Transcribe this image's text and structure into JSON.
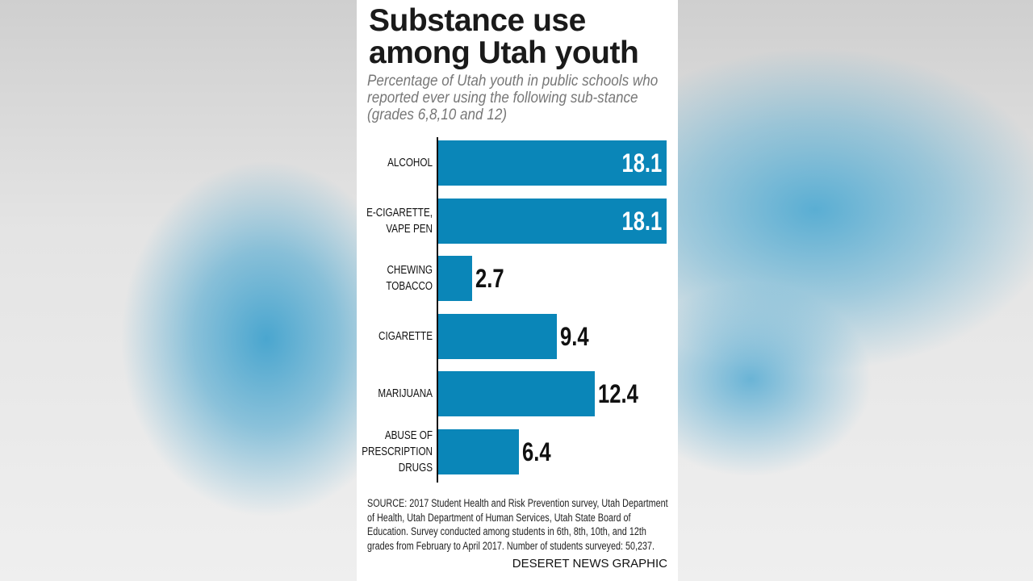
{
  "header": {
    "title": "Substance use\namong Utah youth",
    "subtitle": "Percentage of Utah youth in public schools who reported ever using the following sub-stance (grades 6,8,10 and 12)"
  },
  "chart_data": {
    "type": "bar",
    "orientation": "horizontal",
    "title": "Substance use among Utah youth",
    "categories": [
      "ALCOHOL",
      "E-CIGARETTE,\nVAPE PEN",
      "CHEWING\nTOBACCO",
      "CIGARETTE",
      "MARIJUANA",
      "ABUSE OF\nPRESCRIPTION\nDRUGS"
    ],
    "values": [
      18.1,
      18.1,
      2.7,
      9.4,
      12.4,
      6.4
    ],
    "value_labels": [
      "18.1",
      "18.1",
      "2.7",
      "9.4",
      "12.4",
      "6.4"
    ],
    "xlim": [
      0,
      18.1
    ],
    "grid": false,
    "bar_color": "#0a86b8"
  },
  "footer": {
    "source": "SOURCE: 2017 Student Health and Risk Prevention survey, Utah Department of Health, Utah Department of Human Services, Utah State Board of Education. Survey conducted among students in 6th, 8th, 10th, and 12th grades from February to April 2017. Number of students surveyed: 50,237.",
    "credit": "DESERET NEWS GRAPHIC"
  }
}
